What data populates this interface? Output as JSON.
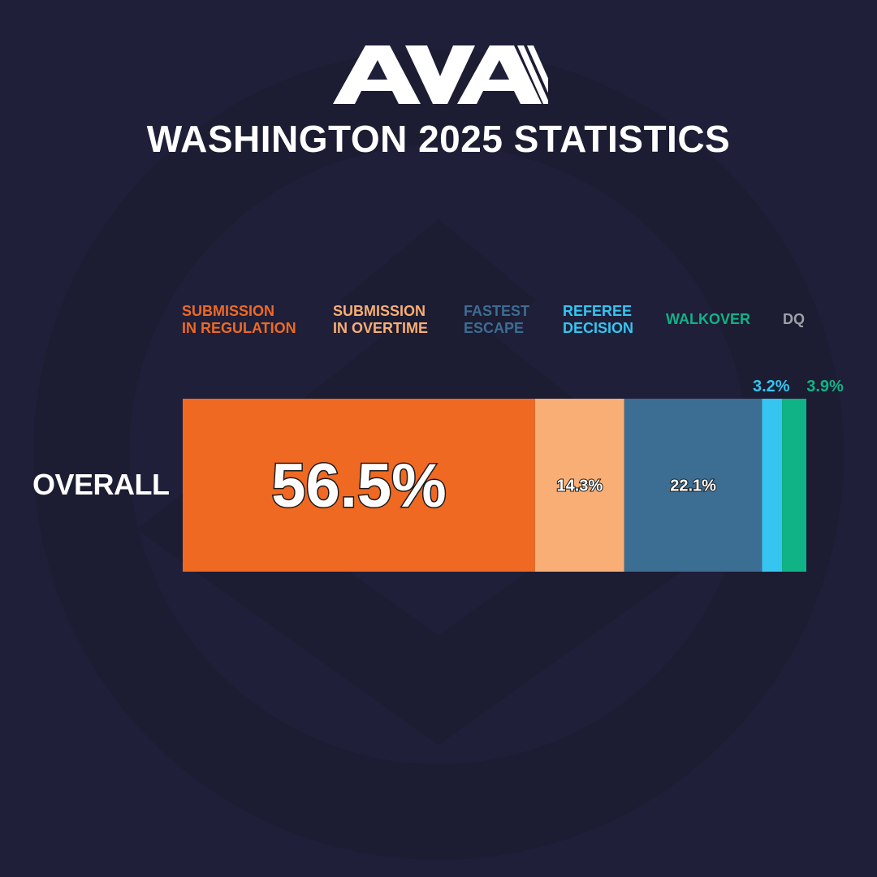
{
  "title": "WASHINGTON 2025 STATISTICS",
  "logo_text": "AVA",
  "colors": {
    "background": "#1f1f3a",
    "watermark": "#1c1c33"
  },
  "legend": [
    {
      "label": "SUBMISSION\nIN REGULATION",
      "color": "#ef6923"
    },
    {
      "label": "SUBMISSION\nIN OVERTIME",
      "color": "#f8ae74"
    },
    {
      "label": "FASTEST\nESCAPE",
      "color": "#3c6d92"
    },
    {
      "label": "REFEREE\nDECISION",
      "color": "#36c5f0"
    },
    {
      "label": "WALKOVER",
      "color": "#10b386"
    },
    {
      "label": "DQ",
      "color": "#a0a0a8"
    }
  ],
  "chart_data": {
    "type": "bar",
    "stacked": true,
    "orientation": "horizontal",
    "categories": [
      "OVERALL"
    ],
    "series": [
      {
        "name": "SUBMISSION IN REGULATION",
        "values": [
          56.5
        ],
        "label": "56.5%",
        "color": "#ef6923"
      },
      {
        "name": "SUBMISSION IN OVERTIME",
        "values": [
          14.3
        ],
        "label": "14.3%",
        "color": "#f8ae74"
      },
      {
        "name": "FASTEST ESCAPE",
        "values": [
          22.1
        ],
        "label": "22.1%",
        "color": "#3c6d92"
      },
      {
        "name": "REFEREE DECISION",
        "values": [
          3.2
        ],
        "label": "3.2%",
        "color": "#36c5f0"
      },
      {
        "name": "WALKOVER",
        "values": [
          3.9
        ],
        "label": "3.9%",
        "color": "#10b386"
      },
      {
        "name": "DQ",
        "values": [
          0
        ],
        "label": "",
        "color": "#a0a0a8"
      }
    ],
    "xlim": [
      0,
      100
    ]
  }
}
